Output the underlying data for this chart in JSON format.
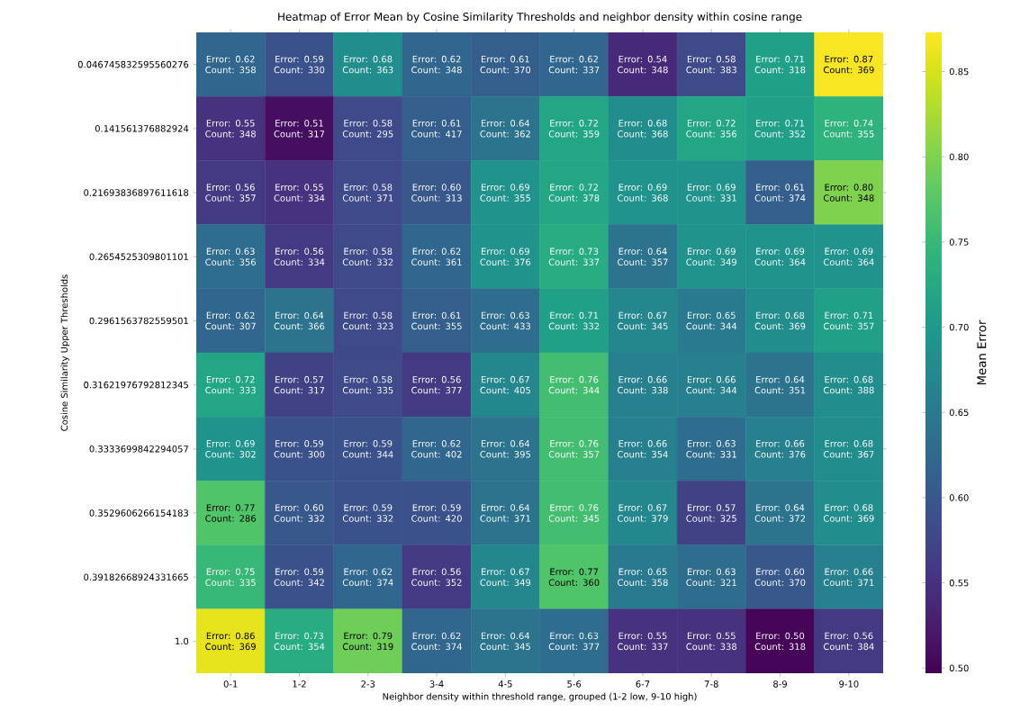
{
  "chart_data": {
    "type": "heatmap",
    "title": "Heatmap of Error Mean by Cosine Similarity Thresholds and neighbor density within cosine range",
    "xlabel": "Neighbor density within threshold range, grouped (1-2 low, 9-10 high)",
    "ylabel": "Cosine Similarity Upper Thresholds",
    "clabel": "Mean Error",
    "categories": [
      "0-1",
      "1-2",
      "2-3",
      "3-4",
      "4-5",
      "5-6",
      "6-7",
      "7-8",
      "8-9",
      "9-10"
    ],
    "y_categories": [
      "0.046745832595560276",
      "0.141561376882924",
      "0.21693836897611618",
      "0.2654525309801101",
      "0.2961563782559501",
      "0.31621976792812345",
      "0.3333699842294057",
      "0.3529606266154183",
      "0.39182668924331665",
      "1.0"
    ],
    "cells": [
      [
        0.62,
        0.59,
        0.68,
        0.62,
        0.61,
        0.62,
        0.54,
        0.58,
        0.71,
        0.87
      ],
      [
        0.55,
        0.51,
        0.58,
        0.61,
        0.64,
        0.72,
        0.68,
        0.72,
        0.71,
        0.74
      ],
      [
        0.56,
        0.55,
        0.58,
        0.6,
        0.69,
        0.72,
        0.69,
        0.69,
        0.61,
        0.8
      ],
      [
        0.63,
        0.56,
        0.58,
        0.62,
        0.69,
        0.73,
        0.64,
        0.69,
        0.69,
        0.69
      ],
      [
        0.62,
        0.64,
        0.58,
        0.61,
        0.63,
        0.71,
        0.67,
        0.65,
        0.68,
        0.71
      ],
      [
        0.72,
        0.57,
        0.58,
        0.56,
        0.67,
        0.76,
        0.66,
        0.66,
        0.64,
        0.68
      ],
      [
        0.69,
        0.59,
        0.59,
        0.62,
        0.64,
        0.76,
        0.66,
        0.63,
        0.66,
        0.68
      ],
      [
        0.77,
        0.6,
        0.59,
        0.59,
        0.64,
        0.76,
        0.67,
        0.57,
        0.64,
        0.68
      ],
      [
        0.75,
        0.59,
        0.62,
        0.56,
        0.67,
        0.77,
        0.65,
        0.63,
        0.6,
        0.66
      ],
      [
        0.86,
        0.73,
        0.79,
        0.62,
        0.64,
        0.63,
        0.55,
        0.55,
        0.5,
        0.56
      ]
    ],
    "cell_labels": [
      [
        "Error: 0.62 Count: 358",
        "Error: 0.59 Count: 330",
        "Error: 0.68 Count: 363",
        "Error: 0.62 Count: 348",
        "Error: 0.61 Count: 370",
        "Error: 0.62 Count: 337",
        "Error: 0.54 Count: 348",
        "Error: 0.58 Count: 383",
        "Error: 0.71 Count: 318",
        "Error: 0.87 Count: 369"
      ],
      [
        "Error: 0.55 Count: 348",
        "Error: 0.51 Count: 317",
        "Error: 0.58 Count: 295",
        "Error: 0.61 Count: 417",
        "Error: 0.64 Count: 362",
        "Error: 0.72 Count: 359",
        "Error: 0.68 Count: 368",
        "Error: 0.72 Count: 356",
        "Error: 0.71 Count: 352",
        "Error: 0.74 Count: 355"
      ],
      [
        "Error: 0.56 Count: 357",
        "Error: 0.55 Count: 334",
        "Error: 0.58 Count: 371",
        "Error: 0.60 Count: 313",
        "Error: 0.69 Count: 355",
        "Error: 0.72 Count: 378",
        "Error: 0.69 Count: 368",
        "Error: 0.69 Count: 331",
        "Error: 0.61 Count: 374",
        "Error: 0.80 Count: 348"
      ],
      [
        "Error: 0.63 Count: 356",
        "Error: 0.56 Count: 334",
        "Error: 0.58 Count: 332",
        "Error: 0.62 Count: 361",
        "Error: 0.69 Count: 376",
        "Error: 0.73 Count: 337",
        "Error: 0.64 Count: 357",
        "Error: 0.69 Count: 349",
        "Error: 0.69 Count: 364",
        "Error: 0.69 Count: 364"
      ],
      [
        "Error: 0.62 Count: 307",
        "Error: 0.64 Count: 366",
        "Error: 0.58 Count: 323",
        "Error: 0.61 Count: 355",
        "Error: 0.63 Count: 433",
        "Error: 0.71 Count: 332",
        "Error: 0.67 Count: 345",
        "Error: 0.65 Count: 344",
        "Error: 0.68 Count: 369",
        "Error: 0.71 Count: 357"
      ],
      [
        "Error: 0.72 Count: 333",
        "Error: 0.57 Count: 317",
        "Error: 0.58 Count: 335",
        "Error: 0.56 Count: 377",
        "Error: 0.67 Count: 405",
        "Error: 0.76 Count: 344",
        "Error: 0.66 Count: 338",
        "Error: 0.66 Count: 344",
        "Error: 0.64 Count: 351",
        "Error: 0.68 Count: 388"
      ],
      [
        "Error: 0.69 Count: 302",
        "Error: 0.59 Count: 300",
        "Error: 0.59 Count: 344",
        "Error: 0.62 Count: 402",
        "Error: 0.64 Count: 395",
        "Error: 0.76 Count: 357",
        "Error: 0.66 Count: 354",
        "Error: 0.63 Count: 331",
        "Error: 0.66 Count: 376",
        "Error: 0.68 Count: 367"
      ],
      [
        "Error: 0.77 Count: 286",
        "Error: 0.60 Count: 332",
        "Error: 0.59 Count: 332",
        "Error: 0.59 Count: 420",
        "Error: 0.64 Count: 371",
        "Error: 0.76 Count: 345",
        "Error: 0.67 Count: 379",
        "Error: 0.57 Count: 325",
        "Error: 0.64 Count: 372",
        "Error: 0.68 Count: 369"
      ],
      [
        "Error: 0.75 Count: 335",
        "Error: 0.59 Count: 342",
        "Error: 0.62 Count: 374",
        "Error: 0.56 Count: 352",
        "Error: 0.67 Count: 349",
        "Error: 0.77 Count: 360",
        "Error: 0.65 Count: 358",
        "Error: 0.63 Count: 321",
        "Error: 0.60 Count: 370",
        "Error: 0.66 Count: 371"
      ],
      [
        "Error: 0.86 Count: 369",
        "Error: 0.73 Count: 354",
        "Error: 0.79 Count: 319",
        "Error: 0.62 Count: 374",
        "Error: 0.64 Count: 345",
        "Error: 0.63 Count: 377",
        "Error: 0.55 Count: 337",
        "Error: 0.55 Count: 338",
        "Error: 0.50 Count: 318",
        "Error: 0.56 Count: 384"
      ]
    ],
    "clim": [
      0.497,
      0.873
    ],
    "cticks": [
      {
        "value": 0.5,
        "label": "0.50"
      },
      {
        "value": 0.55,
        "label": "0.55"
      },
      {
        "value": 0.6,
        "label": "0.60"
      },
      {
        "value": 0.65,
        "label": "0.65"
      },
      {
        "value": 0.7,
        "label": "0.70"
      },
      {
        "value": 0.75,
        "label": "0.75"
      },
      {
        "value": 0.8,
        "label": "0.80"
      },
      {
        "value": 0.85,
        "label": "0.85"
      }
    ]
  }
}
